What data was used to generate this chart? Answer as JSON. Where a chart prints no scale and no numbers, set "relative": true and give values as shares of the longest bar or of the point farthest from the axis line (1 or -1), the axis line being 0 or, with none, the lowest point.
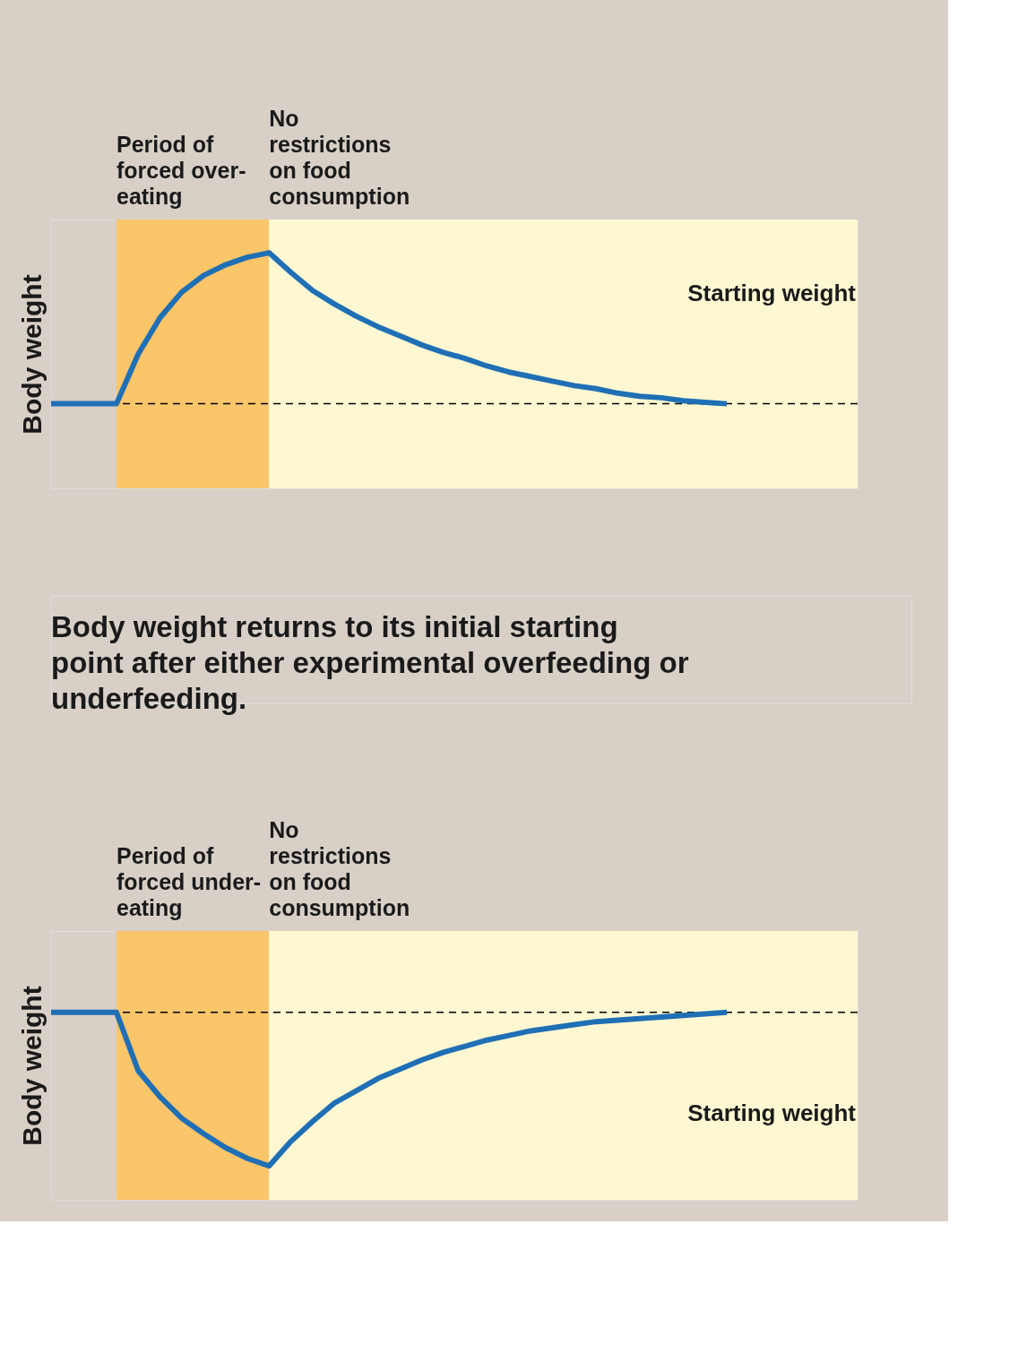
{
  "chart_data": [
    {
      "type": "line",
      "relative": true,
      "ylabel": "Body weight",
      "grid": false,
      "line_style": "solid",
      "marker": "none",
      "categories": [
        null,
        null,
        null,
        null,
        null,
        null,
        null,
        null,
        null,
        null,
        null,
        null,
        null,
        null,
        null,
        null,
        null,
        null,
        null,
        null,
        null,
        null,
        null,
        null,
        null,
        null,
        null,
        null,
        null,
        null,
        null,
        null,
        null,
        null,
        null,
        null,
        null,
        null
      ],
      "series": [
        {
          "color": "#1f6fb5",
          "values": [
            0,
            0,
            0,
            0,
            0.33,
            0.57,
            0.74,
            0.85,
            0.92,
            0.97,
            1,
            0.87,
            0.75,
            0.66,
            0.58,
            0.51,
            0.45,
            0.39,
            0.34,
            0.3,
            0.25,
            0.21,
            0.18,
            0.15,
            0.12,
            0.1,
            0.07,
            0.05,
            0.04,
            0.02,
            0.01,
            0,
            null,
            null,
            null,
            null,
            null,
            null
          ]
        }
      ],
      "ref_lines": [
        {
          "axis": "y",
          "value": 0,
          "label": "Starting weight",
          "color": "#000000",
          "line_style": "dashed"
        }
      ],
      "annotations": [
        "Period of forced over-eating",
        "No restrictions on food consumption",
        "Body weight returns to its initial starting point after either experimental overfeeding or underfeeding."
      ]
    },
    {
      "type": "line",
      "relative": true,
      "ylabel": "Body weight",
      "grid": false,
      "line_style": "solid",
      "marker": "none",
      "categories": [
        null,
        null,
        null,
        null,
        null,
        null,
        null,
        null,
        null,
        null,
        null,
        null,
        null,
        null,
        null,
        null,
        null,
        null,
        null,
        null,
        null,
        null,
        null,
        null,
        null,
        null,
        null,
        null,
        null,
        null,
        null,
        null,
        null,
        null,
        null,
        null,
        null,
        null
      ],
      "series": [
        {
          "color": "#1f6fb5",
          "values": [
            0,
            0,
            0,
            0,
            -0.38,
            -0.55,
            -0.69,
            -0.79,
            -0.88,
            -0.95,
            -1,
            -0.84,
            -0.71,
            -0.59,
            -0.51,
            -0.43,
            -0.37,
            -0.31,
            -0.26,
            -0.22,
            -0.18,
            -0.15,
            -0.12,
            -0.1,
            -0.08,
            -0.06,
            -0.05,
            -0.04,
            -0.03,
            -0.02,
            -0.01,
            0,
            null,
            null,
            null,
            null,
            null,
            null
          ]
        }
      ],
      "ref_lines": [
        {
          "axis": "y",
          "value": 0,
          "label": "Starting weight",
          "color": "#000000",
          "line_style": "dashed"
        }
      ],
      "annotations": [
        "Period of forced under-eating",
        "No restrictions on food consumption"
      ]
    }
  ]
}
